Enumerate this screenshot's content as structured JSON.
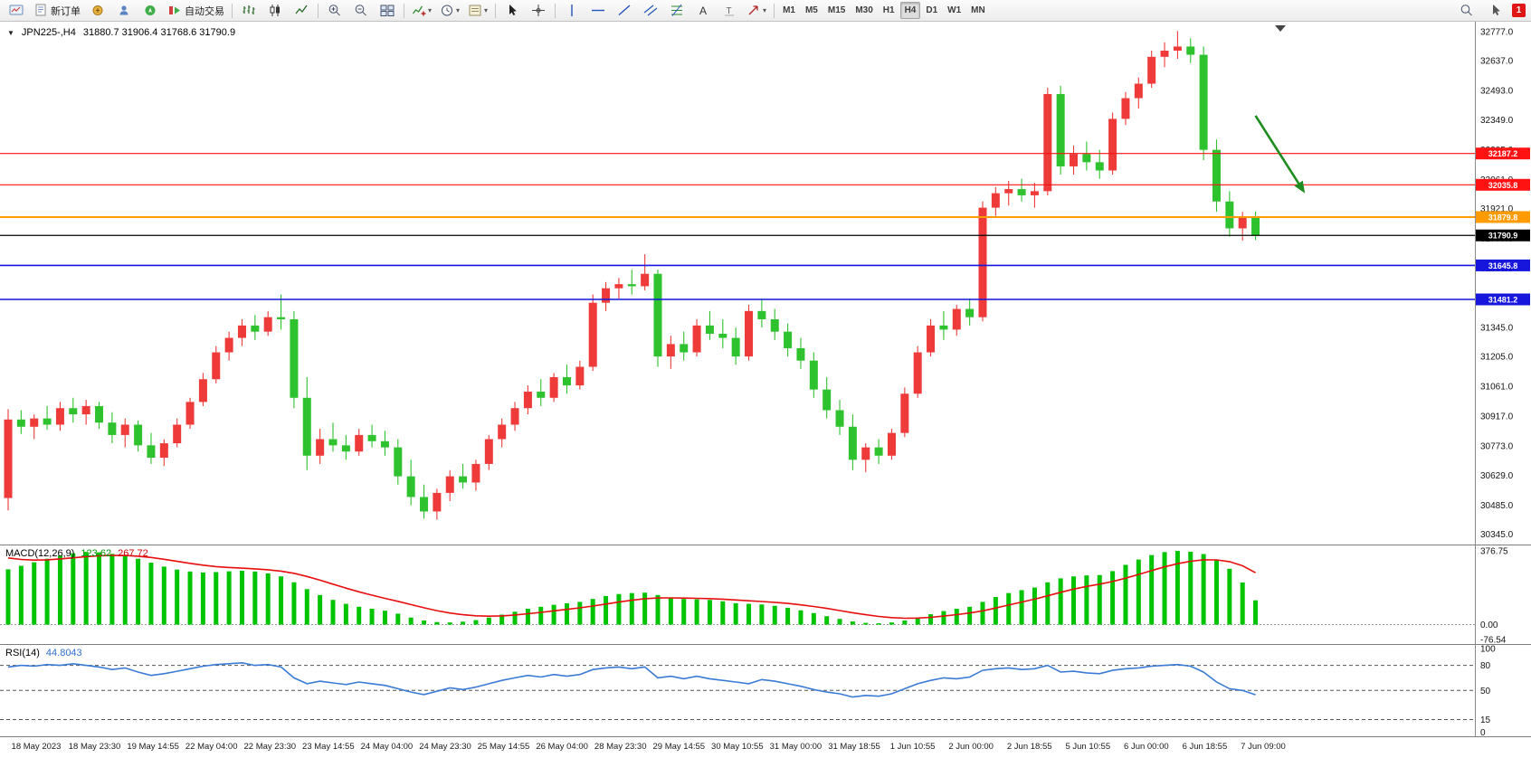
{
  "toolbar": {
    "new_order": "新订单",
    "autotrading": "自动交易",
    "timeframes": [
      "M1",
      "M5",
      "M15",
      "M30",
      "H1",
      "H4",
      "D1",
      "W1",
      "MN"
    ],
    "active_timeframe": "H4",
    "notification_count": "1",
    "icons": [
      "chart-window-icon",
      "new-order-icon",
      "marketwatch-icon",
      "data-window-icon",
      "navigator-icon",
      "autotrading-icon",
      "bars-chart-icon",
      "candlestick-chart-icon",
      "line-chart-icon",
      "zoom-in-icon",
      "zoom-out-icon",
      "tile-windows-icon",
      "indicators-icon",
      "periods-icon",
      "templates-icon",
      "cursor-icon",
      "crosshair-icon",
      "vertical-line-icon",
      "horizontal-line-icon",
      "trendline-icon",
      "channel-icon",
      "fibonacci-icon",
      "text-icon",
      "label-icon",
      "arrows-icon",
      "search-icon",
      "pointer-icon"
    ]
  },
  "chart": {
    "symbol": "JPN225-,H4",
    "ohlc_line": "31880.7 31906.4 31768.6 31790.9",
    "macd_label": "MACD(12,26,9)",
    "macd_main": "123.62",
    "macd_signal": "267.72",
    "rsi_label": "RSI(14)",
    "rsi_value": "44.8043"
  },
  "chart_data": {
    "type": "candlestick",
    "title": "JPN225-,H4",
    "current_bar": {
      "open": 31880.7,
      "high": 31906.4,
      "low": 31768.6,
      "close": 31790.9
    },
    "up_color": "#ef3a3a",
    "down_color": "#2ec32e",
    "price_axis": {
      "min": 30295,
      "max": 32825,
      "labels": [
        "32777.0",
        "32637.0",
        "32493.0",
        "32349.0",
        "32205.0",
        "32061.0",
        "31921.0",
        "31777.0",
        "31633.0",
        "31489.0",
        "31345.0",
        "31205.0",
        "31061.0",
        "30917.0",
        "30773.0",
        "30629.0",
        "30485.0",
        "30345.0"
      ]
    },
    "hlines": [
      {
        "price": 32187.2,
        "color": "#ff1212",
        "width": 1.2
      },
      {
        "price": 32035.8,
        "color": "#ff1212",
        "width": 1.2
      },
      {
        "price": 31879.8,
        "color": "#ff9b00",
        "width": 2
      },
      {
        "price": 31790.9,
        "color": "#000000",
        "width": 1.2
      },
      {
        "price": 31645.8,
        "color": "#1616dd",
        "width": 1.6
      },
      {
        "price": 31481.2,
        "color": "#1616dd",
        "width": 1.6
      }
    ],
    "arrow": {
      "bar1": 96.0,
      "price1": 32370,
      "bar2": 99.8,
      "price2": 31995,
      "color": "#1f8c1f"
    },
    "candles": [
      [
        30520,
        30950,
        30460,
        30900
      ],
      [
        30900,
        30945,
        30830,
        30865
      ],
      [
        30865,
        30925,
        30805,
        30905
      ],
      [
        30905,
        30965,
        30850,
        30875
      ],
      [
        30875,
        30985,
        30845,
        30955
      ],
      [
        30955,
        31005,
        30885,
        30925
      ],
      [
        30925,
        30995,
        30875,
        30965
      ],
      [
        30965,
        30985,
        30855,
        30885
      ],
      [
        30885,
        30935,
        30785,
        30825
      ],
      [
        30825,
        30905,
        30765,
        30875
      ],
      [
        30875,
        30895,
        30745,
        30775
      ],
      [
        30775,
        30835,
        30685,
        30715
      ],
      [
        30715,
        30805,
        30675,
        30785
      ],
      [
        30785,
        30905,
        30765,
        30875
      ],
      [
        30875,
        31005,
        30855,
        30985
      ],
      [
        30985,
        31125,
        30965,
        31095
      ],
      [
        31095,
        31255,
        31075,
        31225
      ],
      [
        31225,
        31325,
        31185,
        31295
      ],
      [
        31295,
        31385,
        31255,
        31355
      ],
      [
        31355,
        31405,
        31285,
        31325
      ],
      [
        31325,
        31425,
        31305,
        31395
      ],
      [
        31395,
        31505,
        31335,
        31385
      ],
      [
        31385,
        31425,
        30955,
        31005
      ],
      [
        31005,
        31105,
        30655,
        30725
      ],
      [
        30725,
        30855,
        30685,
        30805
      ],
      [
        30805,
        30885,
        30745,
        30775
      ],
      [
        30775,
        30825,
        30705,
        30745
      ],
      [
        30745,
        30855,
        30725,
        30825
      ],
      [
        30825,
        30875,
        30765,
        30795
      ],
      [
        30795,
        30845,
        30725,
        30765
      ],
      [
        30765,
        30805,
        30585,
        30625
      ],
      [
        30625,
        30705,
        30485,
        30525
      ],
      [
        30525,
        30585,
        30420,
        30455
      ],
      [
        30455,
        30565,
        30415,
        30545
      ],
      [
        30545,
        30655,
        30505,
        30625
      ],
      [
        30625,
        30685,
        30565,
        30595
      ],
      [
        30595,
        30705,
        30555,
        30685
      ],
      [
        30685,
        30825,
        30655,
        30805
      ],
      [
        30805,
        30905,
        30765,
        30875
      ],
      [
        30875,
        30985,
        30845,
        30955
      ],
      [
        30955,
        31065,
        30925,
        31035
      ],
      [
        31035,
        31095,
        30965,
        31005
      ],
      [
        31005,
        31125,
        30985,
        31105
      ],
      [
        31105,
        31165,
        31025,
        31065
      ],
      [
        31065,
        31185,
        31045,
        31155
      ],
      [
        31155,
        31505,
        31135,
        31465
      ],
      [
        31465,
        31565,
        31425,
        31535
      ],
      [
        31535,
        31585,
        31485,
        31555
      ],
      [
        31555,
        31625,
        31505,
        31545
      ],
      [
        31545,
        31700,
        31525,
        31605
      ],
      [
        31605,
        31625,
        31155,
        31205
      ],
      [
        31205,
        31305,
        31145,
        31265
      ],
      [
        31265,
        31325,
        31185,
        31225
      ],
      [
        31225,
        31385,
        31205,
        31355
      ],
      [
        31355,
        31425,
        31285,
        31315
      ],
      [
        31315,
        31385,
        31245,
        31295
      ],
      [
        31295,
        31345,
        31165,
        31205
      ],
      [
        31205,
        31455,
        31185,
        31425
      ],
      [
        31425,
        31485,
        31345,
        31385
      ],
      [
        31385,
        31435,
        31285,
        31325
      ],
      [
        31325,
        31365,
        31205,
        31245
      ],
      [
        31245,
        31295,
        31145,
        31185
      ],
      [
        31185,
        31225,
        31005,
        31045
      ],
      [
        31045,
        31105,
        30905,
        30945
      ],
      [
        30945,
        30995,
        30825,
        30865
      ],
      [
        30865,
        30925,
        30655,
        30705
      ],
      [
        30705,
        30785,
        30645,
        30765
      ],
      [
        30765,
        30805,
        30685,
        30725
      ],
      [
        30725,
        30855,
        30705,
        30835
      ],
      [
        30835,
        31055,
        30815,
        31025
      ],
      [
        31025,
        31255,
        31005,
        31225
      ],
      [
        31225,
        31385,
        31205,
        31355
      ],
      [
        31355,
        31425,
        31285,
        31335
      ],
      [
        31335,
        31455,
        31305,
        31435
      ],
      [
        31435,
        31485,
        31355,
        31395
      ],
      [
        31395,
        31955,
        31375,
        31925
      ],
      [
        31925,
        32025,
        31885,
        31995
      ],
      [
        31995,
        32055,
        31935,
        32015
      ],
      [
        32015,
        32065,
        31955,
        31985
      ],
      [
        31985,
        32045,
        31925,
        32005
      ],
      [
        32005,
        32505,
        31985,
        32475
      ],
      [
        32475,
        32515,
        32085,
        32125
      ],
      [
        32125,
        32225,
        32085,
        32185
      ],
      [
        32185,
        32245,
        32105,
        32145
      ],
      [
        32145,
        32205,
        32065,
        32105
      ],
      [
        32105,
        32385,
        32085,
        32355
      ],
      [
        32355,
        32485,
        32325,
        32455
      ],
      [
        32455,
        32555,
        32405,
        32525
      ],
      [
        32525,
        32685,
        32505,
        32655
      ],
      [
        32655,
        32725,
        32605,
        32685
      ],
      [
        32685,
        32780,
        32645,
        32705
      ],
      [
        32705,
        32745,
        32625,
        32665
      ],
      [
        32665,
        32705,
        32155,
        32205
      ],
      [
        32205,
        32255,
        31905,
        31955
      ],
      [
        31955,
        32005,
        31785,
        31825
      ],
      [
        31825,
        31905,
        31765,
        31881
      ],
      [
        31880.7,
        31906.4,
        31768.6,
        31790.9
      ]
    ],
    "macd": {
      "label": "MACD(12,26,9)",
      "main_value": 123.62,
      "signal_value": 267.72,
      "range": [
        -99,
        404
      ],
      "axis_labels": [
        "376.75",
        "0.00",
        "-76.54"
      ],
      "histogram_color": "#00c400",
      "signal_color": "#e80e0e",
      "signal_seed": 355,
      "histogram": [
        282,
        300,
        318,
        336,
        352,
        364,
        371,
        369,
        361,
        350,
        336,
        316,
        296,
        281,
        271,
        266,
        268,
        272,
        275,
        271,
        261,
        246,
        216,
        181,
        151,
        126,
        106,
        91,
        81,
        71,
        56,
        36,
        21,
        13,
        11,
        15,
        23,
        36,
        51,
        66,
        81,
        91,
        101,
        109,
        116,
        131,
        146,
        156,
        161,
        163,
        151,
        139,
        131,
        129,
        126,
        119,
        109,
        106,
        103,
        96,
        86,
        73,
        59,
        43,
        29,
        16,
        9,
        7,
        11,
        21,
        36,
        53,
        69,
        81,
        91,
        116,
        141,
        161,
        176,
        189,
        216,
        236,
        246,
        251,
        253,
        273,
        305,
        332,
        355,
        370,
        376,
        372,
        360,
        330,
        285,
        215,
        124
      ]
    },
    "rsi": {
      "label": "RSI(14)",
      "value": 44.8043,
      "range": [
        -5,
        104.5
      ],
      "axis_labels": [
        "100",
        "80",
        "50",
        "15",
        "0"
      ],
      "levels": [
        80,
        50,
        15
      ],
      "line_color": "#3a7bd5",
      "values": [
        78,
        80,
        79,
        81,
        80,
        82,
        80,
        78,
        75,
        77,
        72,
        68,
        70,
        73,
        76,
        79,
        81,
        82,
        83,
        80,
        81,
        78,
        65,
        58,
        61,
        59,
        57,
        60,
        58,
        56,
        52,
        48,
        45,
        49,
        53,
        51,
        54,
        58,
        62,
        65,
        68,
        66,
        69,
        67,
        69,
        75,
        77,
        78,
        76,
        78,
        65,
        67,
        64,
        67,
        64,
        62,
        60,
        58,
        63,
        61,
        58,
        55,
        51,
        48,
        46,
        42,
        44,
        43,
        46,
        52,
        58,
        62,
        65,
        64,
        66,
        74,
        76,
        77,
        75,
        76,
        80,
        72,
        73,
        71,
        70,
        74,
        76,
        77,
        79,
        80,
        81,
        79,
        72,
        60,
        52,
        50,
        44.8
      ]
    },
    "time_labels": [
      "18 May 2023",
      "18 May 23:30",
      "19 May 14:55",
      "22 May 04:00",
      "22 May 23:30",
      "23 May 14:55",
      "24 May 04:00",
      "24 May 23:30",
      "25 May 14:55",
      "26 May 04:00",
      "28 May 23:30",
      "29 May 14:55",
      "30 May 10:55",
      "31 May 00:00",
      "31 May 18:55",
      "1 Jun 10:55",
      "2 Jun 00:00",
      "2 Jun 18:55",
      "5 Jun 10:55",
      "6 Jun 00:00",
      "6 Jun 18:55",
      "7 Jun 09:00"
    ]
  }
}
